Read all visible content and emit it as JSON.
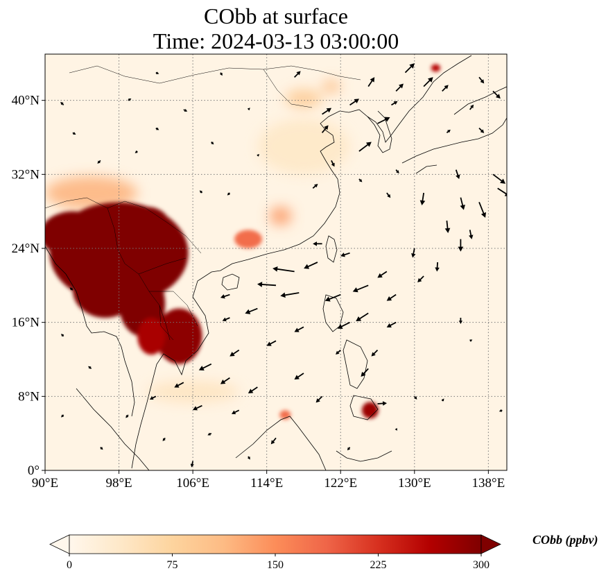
{
  "title": {
    "line1": "CObb at surface",
    "line2": "Time: 2024-03-13 03:00:00"
  },
  "map": {
    "lon_range": [
      90,
      140
    ],
    "lat_range": [
      0,
      45
    ],
    "lon_ticks": [
      "90°E",
      "98°E",
      "106°E",
      "114°E",
      "122°E",
      "130°E",
      "138°E"
    ],
    "lon_tick_values": [
      90,
      98,
      106,
      114,
      122,
      130,
      138
    ],
    "lat_ticks": [
      "0°",
      "8°N",
      "16°N",
      "24°N",
      "32°N",
      "40°N"
    ],
    "lat_tick_values": [
      0,
      8,
      16,
      24,
      32,
      40
    ],
    "gridlines": "dotted",
    "variable": "CObb",
    "units": "ppbv",
    "hotspots": [
      {
        "lon": 98,
        "lat": 23.5,
        "rlon": 7.5,
        "rlat": 5.5,
        "value": 300
      },
      {
        "lon": 93,
        "lat": 25.5,
        "rlon": 3.5,
        "rlat": 2.5,
        "value": 300
      },
      {
        "lon": 96.5,
        "lat": 19.5,
        "rlon": 3.5,
        "rlat": 3.0,
        "value": 300
      },
      {
        "lon": 101,
        "lat": 26.5,
        "rlon": 2.5,
        "rlat": 2.0,
        "value": 300
      },
      {
        "lon": 100.5,
        "lat": 18,
        "rlon": 2.5,
        "rlat": 3.5,
        "value": 300
      },
      {
        "lon": 104.5,
        "lat": 14.5,
        "rlon": 2.5,
        "rlat": 3.0,
        "value": 290
      },
      {
        "lon": 101.5,
        "lat": 14.5,
        "rlon": 1.5,
        "rlat": 2.0,
        "value": 270
      },
      {
        "lon": 95,
        "lat": 30,
        "rlon": 5,
        "rlat": 1.8,
        "value": 120
      },
      {
        "lon": 112,
        "lat": 25,
        "rlon": 1.5,
        "rlat": 1.0,
        "value": 180
      },
      {
        "lon": 115.5,
        "lat": 27.5,
        "rlon": 1.2,
        "rlat": 1.0,
        "value": 140
      },
      {
        "lon": 125.2,
        "lat": 6.5,
        "rlon": 0.9,
        "rlat": 0.9,
        "value": 280
      },
      {
        "lon": 132.3,
        "lat": 43.5,
        "rlon": 0.5,
        "rlat": 0.4,
        "value": 260
      },
      {
        "lon": 118,
        "lat": 40.2,
        "rlon": 2,
        "rlat": 1.0,
        "value": 90
      },
      {
        "lon": 121,
        "lat": 41.5,
        "rlon": 1,
        "rlat": 0.7,
        "value": 110
      },
      {
        "lon": 116,
        "lat": 6.0,
        "rlon": 0.6,
        "rlat": 0.5,
        "value": 180
      },
      {
        "lon": 106,
        "lat": 8.5,
        "rlon": 5,
        "rlat": 1.2,
        "value": 45
      },
      {
        "lon": 118,
        "lat": 35,
        "rlon": 5,
        "rlat": 3,
        "value": 40
      }
    ],
    "wind_arrows": [
      {
        "lon": 117,
        "lat": 21.5,
        "u": -3.5,
        "v": 0.5
      },
      {
        "lon": 115,
        "lat": 20.0,
        "u": -3.0,
        "v": 0.2
      },
      {
        "lon": 117.5,
        "lat": 19.2,
        "u": -3.0,
        "v": -0.5
      },
      {
        "lon": 119.5,
        "lat": 22.5,
        "u": -2.2,
        "v": -1.0
      },
      {
        "lon": 122,
        "lat": 19.0,
        "u": -2.5,
        "v": -1.0
      },
      {
        "lon": 125,
        "lat": 20.0,
        "u": -2.5,
        "v": -1.0
      },
      {
        "lon": 128,
        "lat": 19.0,
        "u": -1.5,
        "v": -1.0
      },
      {
        "lon": 125,
        "lat": 17.0,
        "u": -2.0,
        "v": -1.3
      },
      {
        "lon": 123,
        "lat": 16.0,
        "u": -2.0,
        "v": -1.0
      },
      {
        "lon": 128,
        "lat": 16.0,
        "u": -1.5,
        "v": -0.8
      },
      {
        "lon": 113,
        "lat": 17.5,
        "u": -2.0,
        "v": -0.8
      },
      {
        "lon": 110,
        "lat": 19.0,
        "u": -1.5,
        "v": -0.5
      },
      {
        "lon": 110,
        "lat": 16.5,
        "u": -1.2,
        "v": -0.5
      },
      {
        "lon": 118,
        "lat": 15.5,
        "u": -1.5,
        "v": -0.8
      },
      {
        "lon": 115,
        "lat": 14.0,
        "u": -1.5,
        "v": -0.8
      },
      {
        "lon": 111,
        "lat": 13.0,
        "u": -1.5,
        "v": -1.0
      },
      {
        "lon": 108,
        "lat": 11.5,
        "u": -2.0,
        "v": -1.0
      },
      {
        "lon": 105,
        "lat": 9.5,
        "u": -1.5,
        "v": -0.8
      },
      {
        "lon": 110,
        "lat": 10.0,
        "u": -1.5,
        "v": -1.0
      },
      {
        "lon": 113,
        "lat": 9.0,
        "u": -1.5,
        "v": -1.0
      },
      {
        "lon": 107,
        "lat": 7.0,
        "u": -1.5,
        "v": -0.7
      },
      {
        "lon": 102,
        "lat": 8.0,
        "u": -1.0,
        "v": -0.5
      },
      {
        "lon": 111,
        "lat": 6.5,
        "u": -1.2,
        "v": -0.6
      },
      {
        "lon": 118,
        "lat": 10.5,
        "u": -1.5,
        "v": -1.0
      },
      {
        "lon": 120,
        "lat": 8.0,
        "u": -1.0,
        "v": -1.0
      },
      {
        "lon": 115,
        "lat": 3.5,
        "u": -0.8,
        "v": -1.0
      },
      {
        "lon": 108,
        "lat": 4.0,
        "u": -0.6,
        "v": -0.3
      },
      {
        "lon": 126,
        "lat": 7.2,
        "u": 1.5,
        "v": 0.1
      },
      {
        "lon": 126,
        "lat": 13.0,
        "u": -1.0,
        "v": -1.0
      },
      {
        "lon": 125,
        "lat": 11.0,
        "u": -1.2,
        "v": -1.3
      },
      {
        "lon": 120,
        "lat": 24.5,
        "u": -1.5,
        "v": 0.0
      },
      {
        "lon": 123,
        "lat": 23.5,
        "u": -1.5,
        "v": -0.5
      },
      {
        "lon": 127,
        "lat": 21.5,
        "u": -1.5,
        "v": -1.0
      },
      {
        "lon": 131,
        "lat": 21.0,
        "u": -1.0,
        "v": -1.0
      },
      {
        "lon": 131,
        "lat": 30.0,
        "u": -0.3,
        "v": -2.0
      },
      {
        "lon": 133.5,
        "lat": 27.0,
        "u": 0.2,
        "v": -2.0
      },
      {
        "lon": 135,
        "lat": 25.0,
        "u": 0.0,
        "v": -2.0
      },
      {
        "lon": 135,
        "lat": 29.5,
        "u": 0.5,
        "v": -2.0
      },
      {
        "lon": 137,
        "lat": 29.0,
        "u": 1.0,
        "v": -2.5
      },
      {
        "lon": 138.5,
        "lat": 32.0,
        "u": 2.0,
        "v": -1.5
      },
      {
        "lon": 139,
        "lat": 30.5,
        "u": 2.0,
        "v": -1.3
      },
      {
        "lon": 132.5,
        "lat": 22.5,
        "u": -0.1,
        "v": -1.5
      },
      {
        "lon": 130,
        "lat": 24.0,
        "u": -0.3,
        "v": -1.5
      },
      {
        "lon": 134.5,
        "lat": 32.5,
        "u": 0.5,
        "v": -1.5
      },
      {
        "lon": 136,
        "lat": 26.0,
        "u": 0.3,
        "v": -1.5
      },
      {
        "lon": 135,
        "lat": 16.5,
        "u": 0.0,
        "v": -1.0
      },
      {
        "lon": 122,
        "lat": 13.0,
        "u": -0.8,
        "v": -0.7
      },
      {
        "lon": 124,
        "lat": 34.5,
        "u": 2.0,
        "v": 1.5
      },
      {
        "lon": 126,
        "lat": 37.5,
        "u": 2.0,
        "v": 1.0
      },
      {
        "lon": 120,
        "lat": 38.5,
        "u": 1.5,
        "v": 1.0
      },
      {
        "lon": 131,
        "lat": 41.5,
        "u": 1.5,
        "v": 1.5
      },
      {
        "lon": 133,
        "lat": 41.0,
        "u": 1.0,
        "v": 1.0
      },
      {
        "lon": 129,
        "lat": 43.0,
        "u": 1.5,
        "v": 1.5
      },
      {
        "lon": 128,
        "lat": 41.0,
        "u": 1.2,
        "v": 1.2
      },
      {
        "lon": 123,
        "lat": 39.5,
        "u": 1.5,
        "v": 1.0
      },
      {
        "lon": 125,
        "lat": 41.5,
        "u": 1.0,
        "v": 1.5
      },
      {
        "lon": 117,
        "lat": 42.5,
        "u": 1.0,
        "v": 1.0
      },
      {
        "lon": 120,
        "lat": 36.5,
        "u": 1.0,
        "v": 1.2
      },
      {
        "lon": 127.5,
        "lat": 39.5,
        "u": 1.0,
        "v": 0.6
      },
      {
        "lon": 121,
        "lat": 33.5,
        "u": 0.5,
        "v": -1.0
      },
      {
        "lon": 119,
        "lat": 30.5,
        "u": 0.8,
        "v": 0.7
      },
      {
        "lon": 124,
        "lat": 31.5,
        "u": 0.5,
        "v": -0.5
      },
      {
        "lon": 127,
        "lat": 30.0,
        "u": 0.6,
        "v": -0.8
      },
      {
        "lon": 128,
        "lat": 32.5,
        "u": 0.5,
        "v": -0.6
      },
      {
        "lon": 138.5,
        "lat": 41.0,
        "u": 1.2,
        "v": -1.2
      },
      {
        "lon": 137,
        "lat": 37.0,
        "u": 0.8,
        "v": -0.8
      },
      {
        "lon": 136,
        "lat": 39.0,
        "u": 0.6,
        "v": 0.8
      },
      {
        "lon": 137,
        "lat": 42.5,
        "u": 0.8,
        "v": -1.0
      },
      {
        "lon": 133.5,
        "lat": 36.5,
        "u": 0.6,
        "v": 0.5
      },
      {
        "lon": 92,
        "lat": 39.5,
        "u": -0.5,
        "v": 0.5
      },
      {
        "lon": 93,
        "lat": 36.5,
        "u": 0.5,
        "v": -0.3
      },
      {
        "lon": 96,
        "lat": 33.5,
        "u": -0.5,
        "v": -0.5
      },
      {
        "lon": 99,
        "lat": 40.0,
        "u": 0.5,
        "v": 0.3
      },
      {
        "lon": 102,
        "lat": 37.0,
        "u": 0.5,
        "v": -0.3
      },
      {
        "lon": 102,
        "lat": 43.0,
        "u": 0.5,
        "v": -0.2
      },
      {
        "lon": 105,
        "lat": 39.0,
        "u": 0.6,
        "v": -0.3
      },
      {
        "lon": 100,
        "lat": 34.5,
        "u": -0.4,
        "v": -0.3
      },
      {
        "lon": 108,
        "lat": 35.5,
        "u": 0.4,
        "v": -0.4
      },
      {
        "lon": 109,
        "lat": 43.0,
        "u": 0.3,
        "v": -0.5
      },
      {
        "lon": 112,
        "lat": 39.0,
        "u": 0.3,
        "v": 0.3
      },
      {
        "lon": 110,
        "lat": 30.0,
        "u": -0.4,
        "v": -0.4
      },
      {
        "lon": 93,
        "lat": 19.5,
        "u": -0.5,
        "v": 0.4
      },
      {
        "lon": 92,
        "lat": 14.5,
        "u": -0.4,
        "v": 0.4
      },
      {
        "lon": 95,
        "lat": 11.0,
        "u": -0.5,
        "v": 0.4
      },
      {
        "lon": 92,
        "lat": 6.0,
        "u": -0.4,
        "v": -0.4
      },
      {
        "lon": 96,
        "lat": 2.5,
        "u": 0.4,
        "v": -0.4
      },
      {
        "lon": 99,
        "lat": 6.0,
        "u": -0.4,
        "v": -0.5
      },
      {
        "lon": 103,
        "lat": 3.5,
        "u": -0.4,
        "v": -0.5
      },
      {
        "lon": 106,
        "lat": 1.0,
        "u": -0.2,
        "v": -1.0
      },
      {
        "lon": 112,
        "lat": 1.5,
        "u": 0.3,
        "v": -0.5
      },
      {
        "lon": 123,
        "lat": 2.5,
        "u": -0.4,
        "v": -0.5
      },
      {
        "lon": 130,
        "lat": 8.0,
        "u": 0.4,
        "v": -0.5
      },
      {
        "lon": 133,
        "lat": 7.5,
        "u": 0.3,
        "v": 0.4
      },
      {
        "lon": 128,
        "lat": 4.5,
        "u": 0.2,
        "v": -0.3
      },
      {
        "lon": 139.5,
        "lat": 6.5,
        "u": -0.5,
        "v": -0.2
      },
      {
        "lon": 136,
        "lat": 14.0,
        "u": 0.4,
        "v": 0.2
      },
      {
        "lon": 107,
        "lat": 30.0,
        "u": -0.4,
        "v": 0.4
      },
      {
        "lon": 113,
        "lat": 34.0,
        "u": 0.3,
        "v": 0.3
      }
    ],
    "colors": {
      "land_line": "#000000",
      "grid": "#777777"
    }
  },
  "colorbar": {
    "label": "CObb (ppbv)",
    "ticks": [
      "0",
      "75",
      "150",
      "225",
      "300"
    ],
    "tick_values": [
      0,
      75,
      150,
      225,
      300
    ],
    "range": [
      0,
      300
    ],
    "extend": "both",
    "colormap": "OrRd",
    "colormap_stops": [
      "#fff7ec",
      "#fee8c8",
      "#fdd49e",
      "#fdbb84",
      "#fc8d59",
      "#ef6548",
      "#d7301f",
      "#b30000",
      "#7f0000"
    ]
  }
}
